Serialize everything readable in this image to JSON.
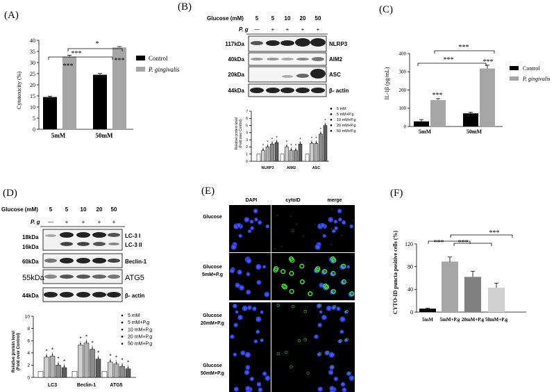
{
  "panels": {
    "A": {
      "label": "(A)",
      "chart_data": {
        "type": "bar",
        "ylabel": "Cytotoxicity (%)",
        "ylim": [
          0,
          40
        ],
        "yticks": [
          "0",
          "5",
          "10",
          "15",
          "20",
          "25",
          "30",
          "35",
          "40"
        ],
        "categories": [
          "5mM",
          "50mM"
        ],
        "series": [
          {
            "name": "Control",
            "values": [
              14.5,
              24.5
            ],
            "errors": [
              0.4,
              0.6
            ],
            "color": "#000000"
          },
          {
            "name": "P. gingivalis",
            "values": [
              32.7,
              36.8
            ],
            "errors": [
              0.6,
              0.4
            ],
            "color": "#a6a6a6"
          }
        ],
        "annotations": [
          "***",
          "***",
          "***",
          "*"
        ]
      }
    },
    "B": {
      "label": "(B)",
      "glucose_label": "Glucose (mM)",
      "glucose_values": [
        "5",
        "5",
        "10",
        "20",
        "50"
      ],
      "pg_label": "P. g",
      "pg_values": [
        "—",
        "+",
        "+",
        "+",
        "+"
      ],
      "blots": [
        {
          "kda": "117kDa",
          "name": "NLRP3"
        },
        {
          "kda": "40kDa",
          "name": "AIM2"
        },
        {
          "kda": "20kDa",
          "name": "ASC"
        },
        {
          "kda": "44kDa",
          "name": "β- actin"
        }
      ],
      "chart_data": {
        "type": "bar",
        "ylabel": "Relative protein level",
        "ylabel2": "(Fold over Control)",
        "ylim": [
          0,
          7
        ],
        "yticks": [
          "0",
          "1",
          "2",
          "3",
          "4",
          "5",
          "6",
          "7"
        ],
        "categories": [
          "NLRP3",
          "AIM2",
          "ASC"
        ],
        "series": [
          {
            "name": "5 mM",
            "values": [
              1.0,
              1.0,
              1.0
            ]
          },
          {
            "name": "5 mM+P.g",
            "values": [
              1.5,
              2.0,
              2.5
            ]
          },
          {
            "name": "10 mM+P.g",
            "values": [
              2.0,
              1.5,
              2.5
            ]
          },
          {
            "name": "20 mM+P.g",
            "values": [
              2.4,
              1.5,
              3.8
            ]
          },
          {
            "name": "50 mM+P.g",
            "values": [
              2.6,
              2.4,
              5.0
            ]
          }
        ]
      }
    },
    "C": {
      "label": "(C)",
      "chart_data": {
        "type": "bar",
        "ylabel": "IL-1β (pg/mL)",
        "ylim": [
          0,
          400
        ],
        "yticks": [
          "0",
          "100",
          "200",
          "300",
          "400"
        ],
        "categories": [
          "5mM",
          "50mM"
        ],
        "series": [
          {
            "name": "Control",
            "values": [
              28,
              72
            ],
            "errors": [
              10,
              6
            ],
            "color": "#000000"
          },
          {
            "name": "P. gingivalis",
            "values": [
              145,
              318
            ],
            "errors": [
              8,
              18
            ],
            "color": "#a6a6a6"
          }
        ],
        "annotations": [
          "***",
          "***",
          "***",
          "***"
        ]
      }
    },
    "D": {
      "label": "(D)",
      "glucose_label": "Glucose (mM)",
      "glucose_values": [
        "5",
        "5",
        "10",
        "20",
        "50"
      ],
      "pg_label": "P. g",
      "pg_values": [
        "—",
        "+",
        "+",
        "+",
        "+"
      ],
      "blots": [
        {
          "kda": "18kDa",
          "kda2": "16kDa",
          "name": "LC-3 I",
          "name2": "LC-3 II"
        },
        {
          "kda": "60kDa",
          "name": "Beclin-1"
        },
        {
          "kda": "55kDa",
          "name": "ATG5"
        },
        {
          "kda": "44kDa",
          "name": "β- actin"
        }
      ],
      "chart_data": {
        "type": "bar",
        "ylabel": "Relative protein level",
        "ylabel2": "(Fold over Control)",
        "ylim": [
          0,
          10
        ],
        "yticks": [
          "0",
          "2",
          "4",
          "6",
          "8",
          "10"
        ],
        "categories": [
          "LC3",
          "Beclin-1",
          "ATG5"
        ],
        "series": [
          {
            "name": "5 mM",
            "values": [
              1.0,
              1.0,
              1.0
            ]
          },
          {
            "name": "5 mM+P.g",
            "values": [
              3.3,
              5.3,
              2.5
            ]
          },
          {
            "name": "10 mM+P.g",
            "values": [
              3.5,
              5.6,
              2.2
            ]
          },
          {
            "name": "20 mM+P.g",
            "values": [
              2.0,
              4.6,
              1.8
            ]
          },
          {
            "name": "50 mM+P.g",
            "values": [
              1.6,
              3.0,
              1.4
            ]
          }
        ]
      }
    },
    "E": {
      "label": "(E)",
      "columns": [
        "DAPI",
        "cytoID",
        "merge"
      ],
      "rows": [
        {
          "line1": "Glucose",
          "line2": ""
        },
        {
          "line1": "Glucose",
          "line2": "5mM+P.g"
        },
        {
          "line1": "Glucose",
          "line2": "20mM+P.g"
        },
        {
          "line1": "Glucose",
          "line2": "50mM+P.g"
        }
      ]
    },
    "F": {
      "label": "(F)",
      "chart_data": {
        "type": "bar",
        "ylabel": "CYTO-ID puncta positive cells (%)",
        "ylim": [
          0,
          120
        ],
        "yticks": [
          "0",
          "40",
          "80",
          "120"
        ],
        "categories": [
          "5mM",
          "5mM+P.g",
          "20mM+P.g",
          "50mM+P.g"
        ],
        "values": [
          6,
          89,
          62,
          43
        ],
        "errors": [
          1,
          8,
          10,
          8
        ],
        "colors": [
          "#000000",
          "#a6a6a6",
          "#808080",
          "#d0d0d0"
        ],
        "annotations": [
          "***",
          "***",
          "***"
        ]
      }
    }
  }
}
